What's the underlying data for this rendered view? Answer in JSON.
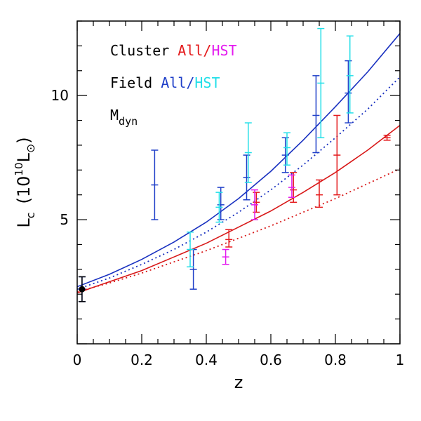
{
  "chart_data": {
    "type": "scatter",
    "xlabel": "z",
    "ylabel": {
      "symbol": "L",
      "subscript": "c",
      "unit_open": "(10",
      "unit_exponent": "10",
      "unit_symbol": "L",
      "unit_subscript": "⊙",
      "unit_close": ")"
    },
    "xlim": [
      0,
      1
    ],
    "ylim": [
      0,
      13
    ],
    "x_ticks": [
      {
        "value": 0,
        "label": "0"
      },
      {
        "value": 0.2,
        "label": "0.2"
      },
      {
        "value": 0.4,
        "label": "0.4"
      },
      {
        "value": 0.6,
        "label": "0.6"
      },
      {
        "value": 0.8,
        "label": "0.8"
      },
      {
        "value": 1,
        "label": "1"
      }
    ],
    "y_ticks": [
      {
        "value": 5,
        "label": "5"
      },
      {
        "value": 10,
        "label": "10"
      }
    ],
    "legend": {
      "placement": "top-left",
      "lines": [
        {
          "label": "Cluster",
          "parts": [
            {
              "text": "All",
              "color": "#e41a1c"
            },
            {
              "text": "/",
              "color": "#e41a1c"
            },
            {
              "text": "HST",
              "color": "#e41aef"
            }
          ]
        },
        {
          "label": "Field",
          "parts": [
            {
              "text": "All",
              "color": "#1f3fc8"
            },
            {
              "text": "/",
              "color": "#1f3fc8"
            },
            {
              "text": "HST",
              "color": "#22dfe8"
            }
          ]
        },
        {
          "label": "M",
          "subscript": "dyn",
          "parts": []
        }
      ]
    },
    "curves": [
      {
        "color": "#1830c0",
        "style": "solid",
        "x": [
          0,
          0.1,
          0.2,
          0.3,
          0.4,
          0.5,
          0.6,
          0.7,
          0.8,
          0.9,
          1.0
        ],
        "y": [
          2.3,
          2.8,
          3.4,
          4.1,
          4.9,
          5.85,
          6.95,
          8.2,
          9.55,
          10.95,
          12.5
        ]
      },
      {
        "color": "#1830c0",
        "style": "dotted",
        "x": [
          0,
          0.1,
          0.2,
          0.3,
          0.4,
          0.5,
          0.6,
          0.7,
          0.8,
          0.9,
          1.0
        ],
        "y": [
          2.2,
          2.65,
          3.2,
          3.8,
          4.5,
          5.3,
          6.2,
          7.2,
          8.3,
          9.45,
          10.75
        ]
      },
      {
        "color": "#d81818",
        "style": "solid",
        "x": [
          0,
          0.1,
          0.2,
          0.3,
          0.4,
          0.5,
          0.6,
          0.7,
          0.8,
          0.9,
          1.0
        ],
        "y": [
          2.05,
          2.5,
          2.95,
          3.5,
          4.05,
          4.7,
          5.35,
          6.1,
          6.9,
          7.8,
          8.8
        ]
      },
      {
        "color": "#d81818",
        "style": "dotted",
        "x": [
          0,
          0.1,
          0.2,
          0.3,
          0.4,
          0.5,
          0.6,
          0.7,
          0.8,
          0.9,
          1.0
        ],
        "y": [
          2.1,
          2.45,
          2.85,
          3.3,
          3.75,
          4.25,
          4.75,
          5.3,
          5.85,
          6.45,
          7.05
        ]
      }
    ],
    "series": [
      {
        "name": "Cluster All",
        "color": "#e41a1c",
        "points": [
          {
            "x": 0.47,
            "y": 4.2,
            "lo": 3.9,
            "hi": 4.6
          },
          {
            "x": 0.555,
            "y": 5.7,
            "lo": 5.3,
            "hi": 6.1
          },
          {
            "x": 0.67,
            "y": 6.2,
            "lo": 5.7,
            "hi": 6.9
          },
          {
            "x": 0.75,
            "y": 6.0,
            "lo": 5.5,
            "hi": 6.6
          },
          {
            "x": 0.805,
            "y": 7.6,
            "lo": 6.0,
            "hi": 9.2
          },
          {
            "x": 0.96,
            "y": 8.3,
            "lo": 8.2,
            "hi": 8.4
          }
        ]
      },
      {
        "name": "Cluster HST",
        "color": "#e41aef",
        "points": [
          {
            "x": 0.46,
            "y": 3.5,
            "lo": 3.2,
            "hi": 3.8
          },
          {
            "x": 0.55,
            "y": 5.6,
            "lo": 5.0,
            "hi": 6.2
          },
          {
            "x": 0.665,
            "y": 6.3,
            "lo": 5.9,
            "hi": 6.8
          }
        ]
      },
      {
        "name": "Field All",
        "color": "#1f3fc8",
        "points": [
          {
            "x": 0.015,
            "y": 2.2,
            "lo": 1.7,
            "hi": 2.7
          },
          {
            "x": 0.24,
            "y": 6.4,
            "lo": 5.0,
            "hi": 7.8
          },
          {
            "x": 0.36,
            "y": 3.0,
            "lo": 2.2,
            "hi": 3.8
          },
          {
            "x": 0.445,
            "y": 5.6,
            "lo": 5.0,
            "hi": 6.3
          },
          {
            "x": 0.525,
            "y": 6.7,
            "lo": 5.8,
            "hi": 7.6
          },
          {
            "x": 0.645,
            "y": 7.6,
            "lo": 6.9,
            "hi": 8.3
          },
          {
            "x": 0.74,
            "y": 9.2,
            "lo": 7.7,
            "hi": 10.8
          },
          {
            "x": 0.84,
            "y": 10.1,
            "lo": 8.9,
            "hi": 11.4
          }
        ]
      },
      {
        "name": "Field HST",
        "color": "#22dfe8",
        "points": [
          {
            "x": 0.35,
            "y": 3.8,
            "lo": 3.1,
            "hi": 4.5
          },
          {
            "x": 0.44,
            "y": 5.5,
            "lo": 4.9,
            "hi": 6.1
          },
          {
            "x": 0.53,
            "y": 7.7,
            "lo": 6.5,
            "hi": 8.9
          },
          {
            "x": 0.65,
            "y": 7.9,
            "lo": 7.2,
            "hi": 8.5
          },
          {
            "x": 0.755,
            "y": 10.5,
            "lo": 8.3,
            "hi": 12.7
          },
          {
            "x": 0.845,
            "y": 10.8,
            "lo": 9.3,
            "hi": 12.4
          }
        ]
      }
    ],
    "mdyn_point": {
      "x": 0.015,
      "y": 2.2,
      "color": "#000000"
    },
    "mdyn_errorbar": {
      "x": 0.015,
      "lo": 1.7,
      "hi": 2.7,
      "color": "#000000"
    }
  }
}
